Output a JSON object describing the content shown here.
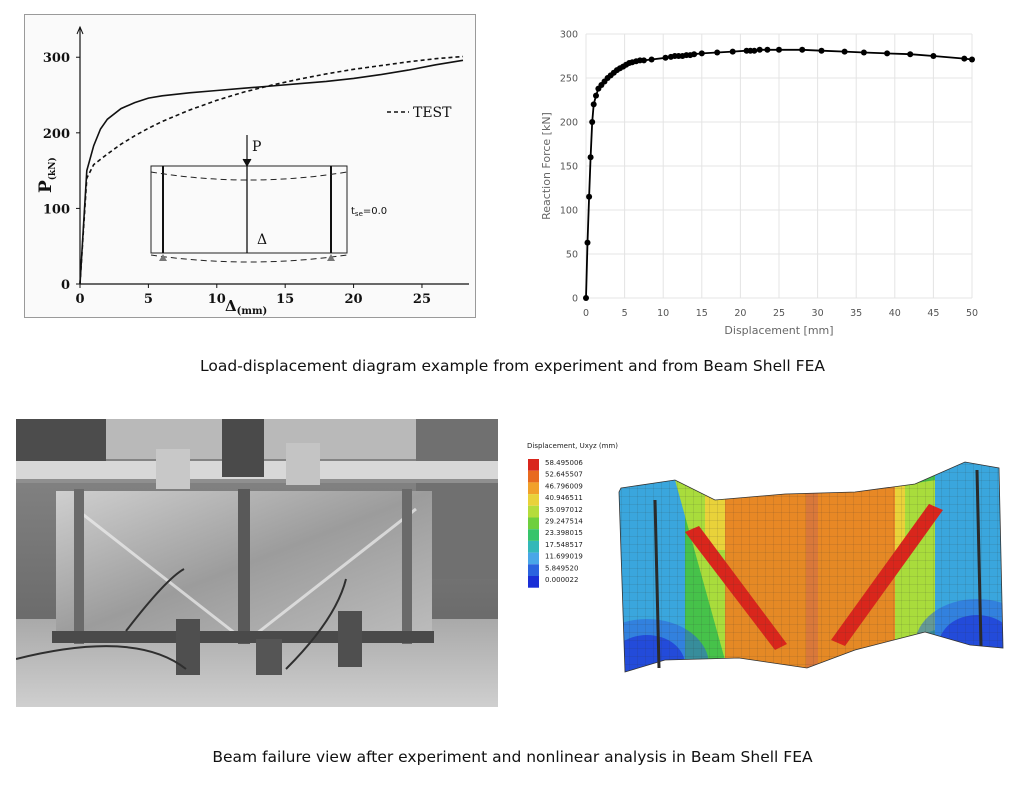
{
  "captions": {
    "top": "Load-displacement diagram example from experiment and from Beam Shell FEA",
    "bottom": "Beam failure view after experiment and nonlinear analysis in Beam Shell FEA"
  },
  "chart_data": [
    {
      "type": "line",
      "title": "",
      "xlabel": "Δ(mm)",
      "ylabel": "P(kN)",
      "xlim": [
        0,
        28
      ],
      "ylim": [
        0,
        340
      ],
      "xticks": [
        0,
        5,
        10,
        15,
        20,
        25
      ],
      "yticks": [
        0,
        100,
        200,
        300
      ],
      "grid": false,
      "legend": "upper right",
      "legend_entries": [
        "TEST"
      ],
      "inset": {
        "load_label": "P",
        "deflection_label": "Δ",
        "stiffener_label": "t",
        "stiffener_subscript": "se",
        "stiffener_value": "=0.0"
      },
      "series": [
        {
          "style": "solid",
          "x": [
            0,
            0.5,
            1,
            1.5,
            2,
            3,
            4,
            5,
            6,
            8,
            10,
            12,
            14,
            16,
            18,
            20,
            22,
            24,
            26,
            28
          ],
          "y": [
            0,
            150,
            183,
            205,
            218,
            232,
            240,
            246,
            249,
            253,
            256,
            259,
            262,
            265,
            268,
            272,
            277,
            283,
            290,
            296
          ]
        },
        {
          "name": "TEST",
          "style": "dashed",
          "x": [
            0,
            0.5,
            1,
            2,
            3,
            4,
            5,
            6,
            8,
            10,
            12,
            14,
            16,
            18,
            20,
            22,
            24,
            26,
            28
          ],
          "y": [
            0,
            140,
            158,
            172,
            185,
            196,
            206,
            215,
            230,
            243,
            254,
            263,
            271,
            278,
            284,
            289,
            294,
            298,
            301
          ]
        }
      ]
    },
    {
      "type": "line",
      "title": "",
      "xlabel": "Displacement [mm]",
      "ylabel": "Reaction Force [kN]",
      "xlim": [
        0,
        50
      ],
      "ylim": [
        0,
        300
      ],
      "xticks": [
        0,
        5,
        10,
        15,
        20,
        25,
        30,
        35,
        40,
        45,
        50
      ],
      "yticks": [
        0,
        50,
        100,
        150,
        200,
        250,
        300
      ],
      "grid": true,
      "color": "#000000",
      "series": [
        {
          "x": [
            0,
            0.2,
            0.4,
            0.6,
            0.8,
            1.0,
            1.3,
            1.6,
            2.0,
            2.4,
            2.8,
            3.2,
            3.6,
            4.0,
            4.4,
            4.8,
            5.2,
            5.6,
            6.0,
            6.5,
            7.0,
            7.5,
            8.5,
            10.3,
            11.0,
            11.5,
            12.0,
            12.5,
            13.0,
            13.5,
            14.0,
            15.0,
            17.0,
            19.0,
            20.8,
            21.3,
            21.8,
            22.5,
            23.5,
            25.0,
            28.0,
            30.5,
            33.5,
            36.0,
            39.0,
            42.0,
            45.0,
            49.0,
            50.0
          ],
          "y": [
            0,
            63,
            115,
            160,
            200,
            220,
            230,
            238,
            242,
            246,
            250,
            253,
            256,
            259,
            261,
            263,
            265,
            267,
            268,
            269,
            270,
            270,
            271,
            273,
            274,
            275,
            275,
            275,
            276,
            276,
            277,
            278,
            279,
            280,
            281,
            281,
            281,
            282,
            282,
            282,
            282,
            281,
            280,
            279,
            278,
            277,
            275,
            272,
            271
          ]
        }
      ]
    }
  ],
  "fea_legend": {
    "title": "Displacement, Uxyz (mm)",
    "values": [
      "58.495006",
      "52.645507",
      "46.796009",
      "40.946511",
      "35.097012",
      "29.247514",
      "23.398015",
      "17.548517",
      "11.699019",
      "5.849520",
      "0.000022"
    ],
    "colors": [
      "#d9261c",
      "#e86a1f",
      "#f1a12a",
      "#e9d23a",
      "#b5dc3c",
      "#6fcf3e",
      "#36c46b",
      "#33b8b8",
      "#49a6e8",
      "#2b63df",
      "#1a2fd6"
    ]
  }
}
